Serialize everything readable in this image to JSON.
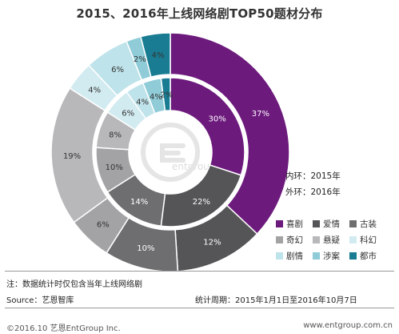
{
  "title": "2015、2016年上线网络剧TOP50题材分布",
  "ring_notes": {
    "inner": "内环：2015年",
    "outer": "外环：2016年"
  },
  "chart_data": {
    "type": "pie",
    "title": "2015、2016年上线网络剧TOP50题材分布",
    "categories": [
      "喜剧",
      "爱情",
      "古装",
      "奇幻",
      "悬疑",
      "科幻",
      "剧情",
      "涉案",
      "都市"
    ],
    "colors": [
      "#6d1a7d",
      "#555557",
      "#6e6e70",
      "#a3a3a5",
      "#b8b8ba",
      "#d2ebf0",
      "#bfe3ea",
      "#8fccd8",
      "#197c92"
    ],
    "series": [
      {
        "name": "2015年",
        "ring": "inner",
        "values": [
          30,
          22,
          14,
          10,
          8,
          6,
          4,
          4,
          2
        ],
        "labels": [
          "30%",
          "22%",
          "14%",
          "10%",
          "8%",
          "6%",
          "4%",
          "4%",
          "2%"
        ]
      },
      {
        "name": "2016年",
        "ring": "outer",
        "values": [
          37,
          12,
          10,
          6,
          19,
          4,
          6,
          2,
          4
        ],
        "labels": [
          "37%",
          "12%",
          "10%",
          "6%",
          "19%",
          "4%",
          "6%",
          "2%",
          "4%"
        ]
      }
    ],
    "legend_position": "bottom-right"
  },
  "watermark": "entgroup",
  "note": "注：数据统计时仅包含当年上线网络剧",
  "source": "Source：艺恩智库",
  "period": "统计周期：2015年1月1日至2016年10月7日",
  "footer": {
    "left": "©2016.10 艺恩EntGroup Inc.",
    "right": "www.entgroup.com.cn"
  }
}
